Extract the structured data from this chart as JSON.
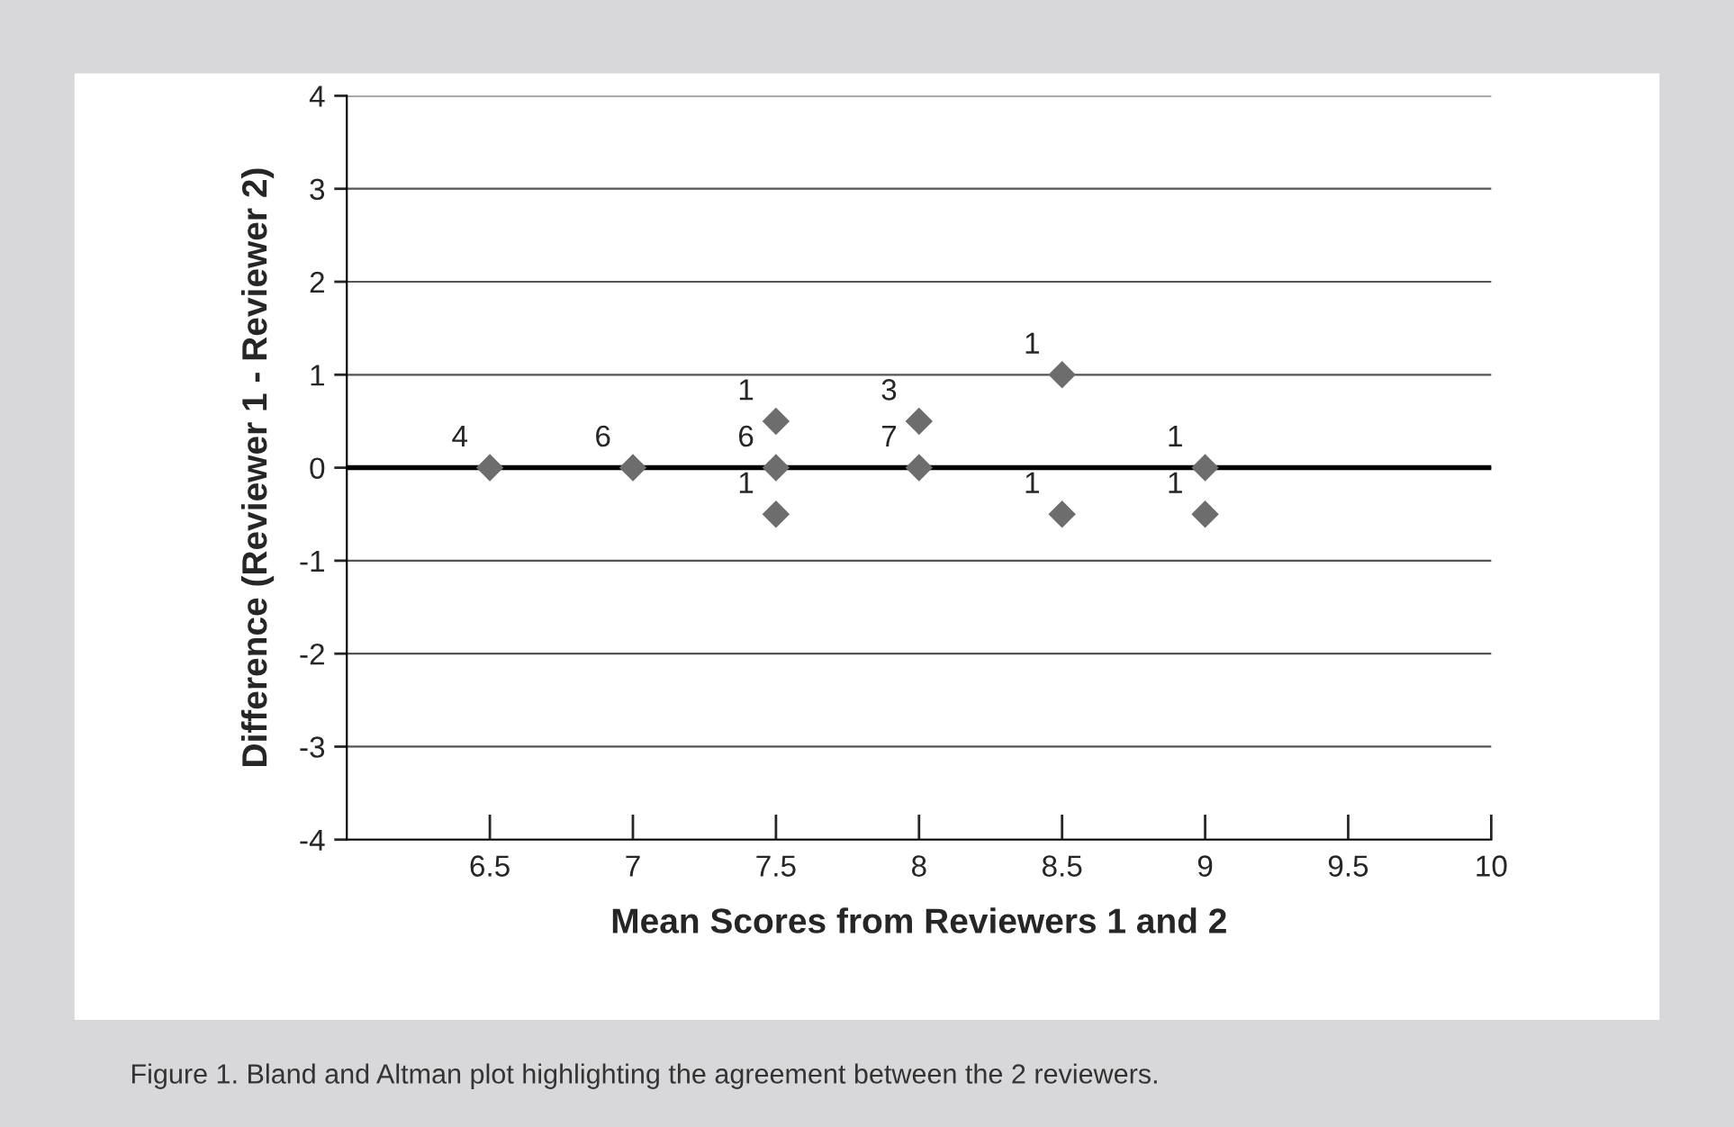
{
  "chart_data": {
    "type": "scatter",
    "xlabel": "Mean Scores from Reviewers 1 and 2",
    "ylabel": "Difference (Reviewer 1 - Reviewer 2)",
    "series": [
      {
        "color": "#6d6d6d",
        "x": [
          6.5,
          7,
          7.5,
          7.5,
          7.5,
          8,
          8,
          8.5,
          8.5,
          9,
          9
        ],
        "values": [
          0,
          0,
          0.5,
          0,
          -0.5,
          0.5,
          0,
          1,
          -0.5,
          0,
          -0.5
        ]
      }
    ],
    "marker": "diamond",
    "xlim": [
      6,
      10
    ],
    "xticks": [
      6.5,
      7,
      7.5,
      8,
      8.5,
      9,
      9.5,
      10
    ],
    "ylim": [
      -4,
      4
    ],
    "yticks": [
      -4,
      -3,
      -2,
      -1,
      0,
      1,
      2,
      3,
      4
    ],
    "grid": "y",
    "ref_lines": [
      {
        "axis": "y",
        "value": 0,
        "color": "#000000"
      }
    ],
    "annotations": [
      {
        "text": "4",
        "x": 6.5,
        "y": 0
      },
      {
        "text": "6",
        "x": 7,
        "y": 0
      },
      {
        "text": "1",
        "x": 7.5,
        "y": 0.5
      },
      {
        "text": "6",
        "x": 7.5,
        "y": 0
      },
      {
        "text": "1",
        "x": 7.5,
        "y": -0.5
      },
      {
        "text": "3",
        "x": 8,
        "y": 0.5
      },
      {
        "text": "7",
        "x": 8,
        "y": 0
      },
      {
        "text": "1",
        "x": 8.5,
        "y": 1
      },
      {
        "text": "1",
        "x": 8.5,
        "y": -0.5
      },
      {
        "text": "1",
        "x": 9,
        "y": 0
      },
      {
        "text": "1",
        "x": 9,
        "y": -0.5
      },
      "Figure 1. Bland and Altman plot highlighting the agreement between the 2 reviewers."
    ]
  }
}
